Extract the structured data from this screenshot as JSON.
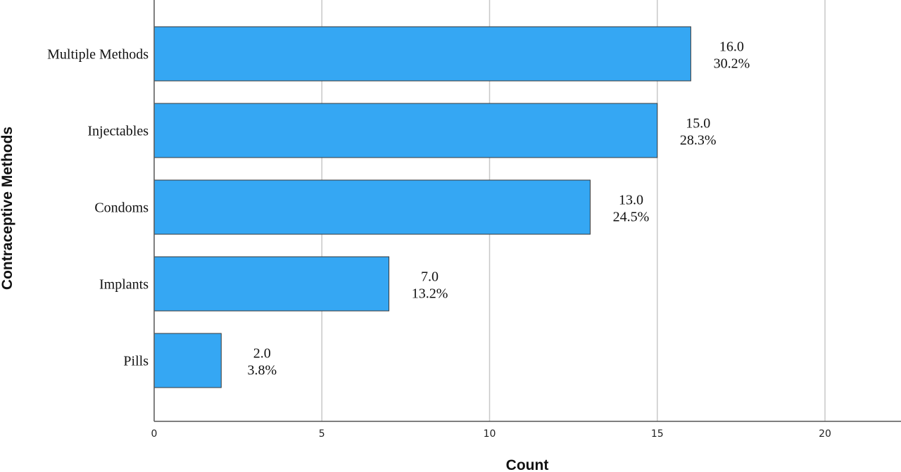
{
  "chart_data": {
    "type": "bar",
    "orientation": "horizontal",
    "title": "",
    "xlabel": "Count",
    "ylabel": "Contraceptive Methods",
    "categories": [
      "Multiple Methods",
      "Injectables",
      "Condoms",
      "Implants",
      "Pills"
    ],
    "values": [
      16.0,
      15.0,
      13.0,
      7.0,
      2.0
    ],
    "value_labels": [
      "16.0",
      "15.0",
      "13.0",
      "7.0",
      "2.0"
    ],
    "percent_labels": [
      "30.2%",
      "28.3%",
      "24.5%",
      "13.2%",
      "3.8%"
    ],
    "xlim": [
      0,
      22
    ],
    "xticks": [
      0,
      5,
      10,
      15,
      20
    ],
    "grid": "vertical",
    "bar_color": "#35a7f3"
  }
}
